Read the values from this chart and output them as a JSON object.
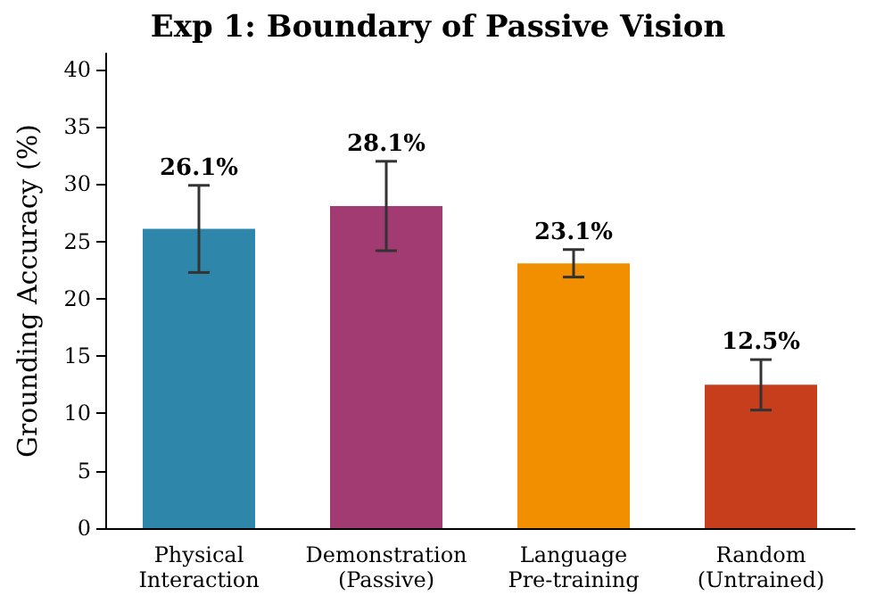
{
  "chart_data": {
    "type": "bar",
    "title": "Exp 1: Boundary of Passive Vision",
    "ylabel": "Grounding Accuracy (%)",
    "categories": [
      "Physical\nInteraction",
      "Demonstration\n(Passive)",
      "Language\nPre-training",
      "Random\n(Untrained)"
    ],
    "values": [
      26.1,
      28.1,
      23.1,
      12.5
    ],
    "colors": [
      "#2e86ab",
      "#a23b72",
      "#f18f01",
      "#c73e1d"
    ],
    "errors": [
      3.8,
      3.9,
      1.2,
      2.2
    ],
    "value_labels": [
      "26.1%",
      "28.1%",
      "23.1%",
      "12.5%"
    ],
    "ylim": [
      0,
      41.4
    ],
    "yticks": [
      0,
      5,
      10,
      15,
      20,
      25,
      30,
      35,
      40
    ],
    "grid": false
  }
}
